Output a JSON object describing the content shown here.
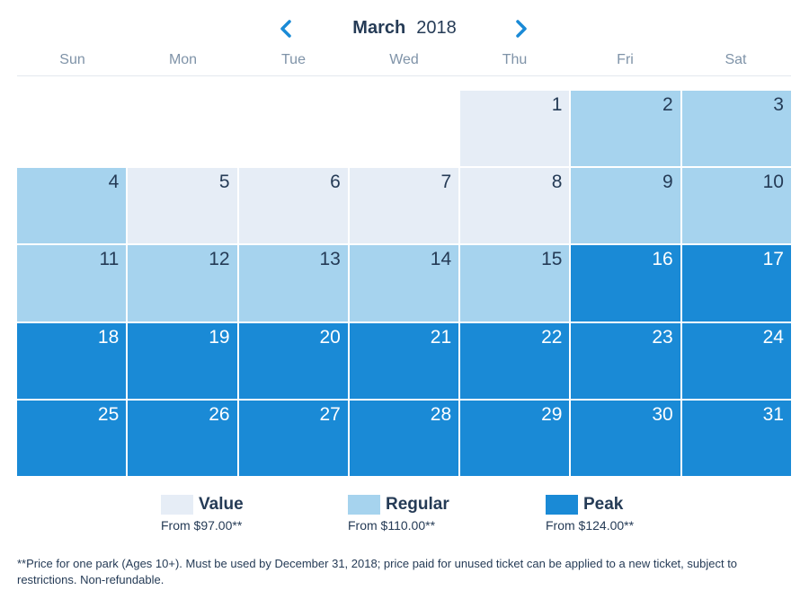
{
  "header": {
    "month": "March",
    "year": "2018",
    "prev_icon": "chevron-left-icon",
    "next_icon": "chevron-right-icon"
  },
  "weekdays": [
    "Sun",
    "Mon",
    "Tue",
    "Wed",
    "Thu",
    "Fri",
    "Sat"
  ],
  "days": [
    {
      "day": "",
      "tier": "empty"
    },
    {
      "day": "",
      "tier": "empty"
    },
    {
      "day": "",
      "tier": "empty"
    },
    {
      "day": "",
      "tier": "empty"
    },
    {
      "day": "1",
      "tier": "value"
    },
    {
      "day": "2",
      "tier": "regular"
    },
    {
      "day": "3",
      "tier": "regular"
    },
    {
      "day": "4",
      "tier": "regular"
    },
    {
      "day": "5",
      "tier": "value"
    },
    {
      "day": "6",
      "tier": "value"
    },
    {
      "day": "7",
      "tier": "value"
    },
    {
      "day": "8",
      "tier": "value"
    },
    {
      "day": "9",
      "tier": "regular"
    },
    {
      "day": "10",
      "tier": "regular"
    },
    {
      "day": "11",
      "tier": "regular"
    },
    {
      "day": "12",
      "tier": "regular"
    },
    {
      "day": "13",
      "tier": "regular"
    },
    {
      "day": "14",
      "tier": "regular"
    },
    {
      "day": "15",
      "tier": "regular"
    },
    {
      "day": "16",
      "tier": "peak"
    },
    {
      "day": "17",
      "tier": "peak"
    },
    {
      "day": "18",
      "tier": "peak"
    },
    {
      "day": "19",
      "tier": "peak"
    },
    {
      "day": "20",
      "tier": "peak"
    },
    {
      "day": "21",
      "tier": "peak"
    },
    {
      "day": "22",
      "tier": "peak"
    },
    {
      "day": "23",
      "tier": "peak"
    },
    {
      "day": "24",
      "tier": "peak"
    },
    {
      "day": "25",
      "tier": "peak"
    },
    {
      "day": "26",
      "tier": "peak"
    },
    {
      "day": "27",
      "tier": "peak"
    },
    {
      "day": "28",
      "tier": "peak"
    },
    {
      "day": "29",
      "tier": "peak"
    },
    {
      "day": "30",
      "tier": "peak"
    },
    {
      "day": "31",
      "tier": "peak"
    }
  ],
  "legend": [
    {
      "name": "Value",
      "price": "From $97.00**",
      "color": "#e6edf6"
    },
    {
      "name": "Regular",
      "price": "From $110.00**",
      "color": "#a6d3ee"
    },
    {
      "name": "Peak",
      "price": "From $124.00**",
      "color": "#1a8ad6"
    }
  ],
  "footnote": "**Price for one park (Ages 10+). Must be used by December 31, 2018; price paid for unused ticket can be applied to a new ticket, subject to restrictions. Non-refundable.",
  "colors": {
    "accent": "#1a8ad6",
    "value": "#e6edf6",
    "regular": "#a6d3ee",
    "peak": "#1a8ad6",
    "text": "#253b56",
    "weekday_text": "#7f93a8"
  }
}
